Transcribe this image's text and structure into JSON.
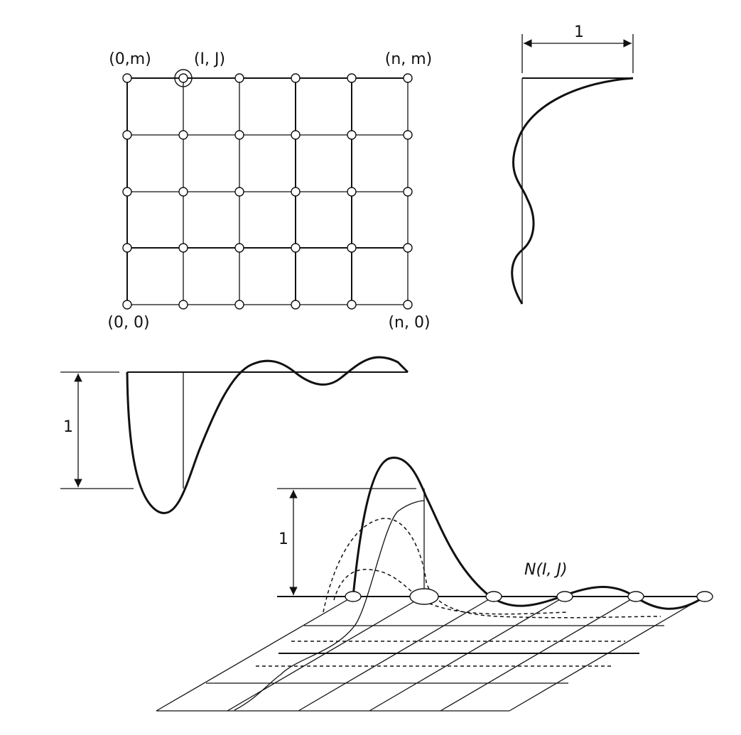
{
  "grid_labels": {
    "top_left": "(0,m)",
    "selected": "(I, J)",
    "top_right": "(n, m)",
    "bottom_left": "(0, 0)",
    "bottom_right": "(n, 0)"
  },
  "dimensions": {
    "right_profile_width": "1",
    "left_profile_height": "1",
    "surface_height": "1"
  },
  "basis_label": "N(I, J)"
}
